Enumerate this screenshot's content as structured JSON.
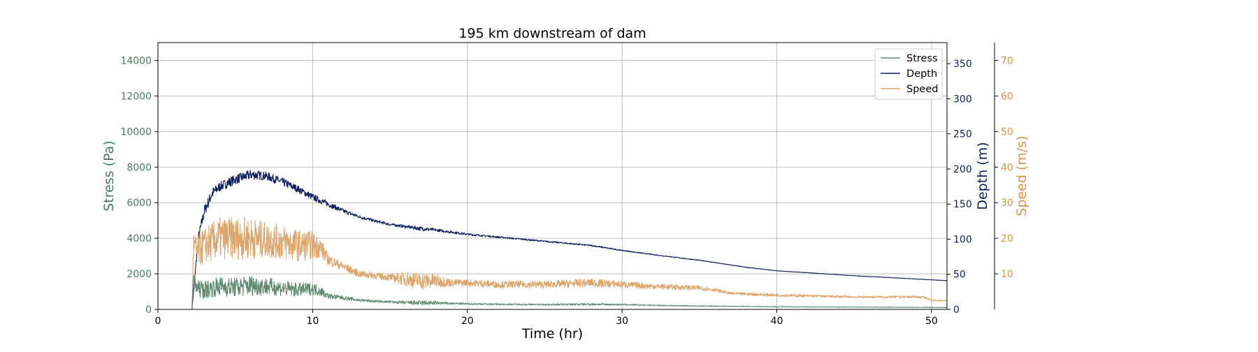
{
  "chart_data": {
    "type": "line",
    "title": "195 km downstream of dam",
    "xlabel": "Time (hr)",
    "xlim": [
      0,
      51
    ],
    "x_ticks": [
      0,
      10,
      20,
      30,
      40,
      50
    ],
    "grid": true,
    "legend_placement": "top-right",
    "axes": {
      "stress": {
        "label": "Stress (Pa)",
        "lim": [
          0,
          15000
        ],
        "ticks": [
          0,
          2000,
          4000,
          6000,
          8000,
          10000,
          12000,
          14000
        ],
        "color": "#4a7a5c",
        "side": "left"
      },
      "depth": {
        "label": "Depth (m)",
        "lim": [
          0,
          380
        ],
        "ticks": [
          0,
          50,
          100,
          150,
          200,
          250,
          300,
          350
        ],
        "color": "#0d1f5c",
        "side": "right"
      },
      "speed": {
        "label": "Speed (m/s)",
        "lim": [
          0,
          75
        ],
        "ticks": [
          10,
          20,
          30,
          40,
          50,
          60,
          70
        ],
        "color": "#d6954a",
        "side": "right-outer"
      }
    },
    "series": [
      {
        "name": "Stress",
        "axis": "stress",
        "color": "#5e8a72",
        "x": [
          0,
          2.2,
          2.3,
          2.5,
          3,
          4,
          5,
          6,
          7,
          8,
          9,
          10,
          10.5,
          11,
          12,
          13,
          14,
          15,
          16,
          17,
          18,
          19,
          20,
          22,
          25,
          28,
          30,
          32,
          35,
          38,
          40,
          45,
          50,
          51
        ],
        "y": [
          0,
          0,
          1800,
          1200,
          1100,
          1300,
          1250,
          1350,
          1300,
          1200,
          1100,
          1150,
          1050,
          750,
          650,
          520,
          460,
          420,
          380,
          360,
          360,
          330,
          310,
          290,
          270,
          290,
          270,
          230,
          190,
          170,
          150,
          130,
          110,
          100
        ],
        "noise": [
          0,
          0,
          300,
          450,
          500,
          550,
          550,
          600,
          500,
          450,
          400,
          350,
          300,
          150,
          120,
          80,
          70,
          60,
          100,
          140,
          100,
          60,
          50,
          40,
          40,
          60,
          40,
          30,
          25,
          20,
          20,
          15,
          15,
          15
        ]
      },
      {
        "name": "Depth",
        "axis": "depth",
        "color": "#0d1f5c",
        "x": [
          0,
          2.2,
          2.6,
          3,
          3.5,
          4,
          5,
          6,
          7,
          8,
          9,
          10,
          11,
          12,
          13,
          14,
          15,
          16,
          17,
          18,
          20,
          22,
          25,
          28,
          30,
          32,
          35,
          38,
          40,
          45,
          51
        ],
        "y": [
          0,
          0,
          100,
          140,
          165,
          175,
          185,
          192,
          190,
          182,
          172,
          160,
          150,
          140,
          132,
          126,
          121,
          118,
          115,
          113,
          107,
          103,
          97,
          91,
          84,
          78,
          70,
          60,
          55,
          48,
          41
        ],
        "noise": [
          0,
          0,
          8,
          8,
          8,
          7,
          7,
          7,
          6,
          6,
          5,
          5,
          4,
          3,
          2.5,
          2,
          2,
          2,
          3,
          2,
          1.5,
          1.2,
          1,
          1,
          0.8,
          0.6,
          0.5,
          0.4,
          0.3,
          0.3,
          0.3
        ]
      },
      {
        "name": "Speed",
        "axis": "speed",
        "color": "#dca66c",
        "x": [
          0,
          2.2,
          2.3,
          2.5,
          3,
          4,
          5,
          6,
          7,
          8,
          9,
          10,
          10.5,
          11,
          12,
          13,
          14,
          15,
          16,
          17,
          18,
          19,
          20,
          22,
          25,
          28,
          30,
          32,
          35,
          36,
          37,
          40,
          45,
          49.5,
          50,
          51
        ],
        "y": [
          0,
          0,
          18,
          16,
          18,
          20,
          20,
          20,
          19.5,
          19,
          18,
          18,
          17.5,
          14,
          12,
          10,
          9.5,
          9,
          8.5,
          8,
          8,
          7.5,
          7.5,
          7,
          7,
          7.5,
          7,
          6.5,
          6,
          5.5,
          4.5,
          4,
          3.5,
          3.5,
          2.5,
          2.5
        ],
        "noise": [
          0,
          0,
          4,
          5,
          5,
          6,
          6,
          6,
          5,
          5,
          4.5,
          4,
          3,
          1.5,
          1.2,
          1,
          1,
          1,
          2,
          2.5,
          2,
          1,
          1,
          1,
          1,
          1.2,
          1,
          0.8,
          0.7,
          0.5,
          0.4,
          0.4,
          0.3,
          0.3,
          0.2,
          0.2
        ]
      }
    ]
  }
}
